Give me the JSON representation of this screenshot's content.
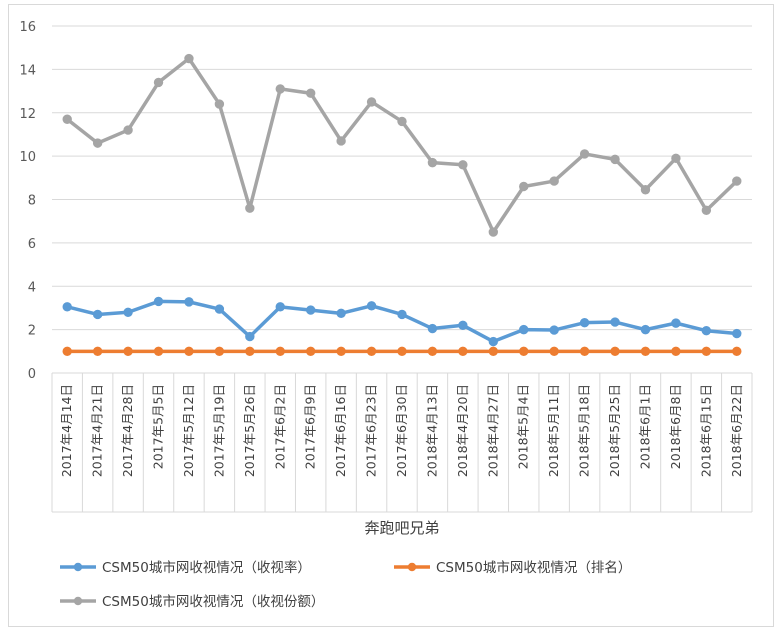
{
  "chart_data": {
    "type": "line",
    "xlabel": "奔跑吧兄弟",
    "ylim": [
      0,
      16
    ],
    "ytick_step": 2,
    "grid": "horizontal",
    "legend_position": "bottom",
    "categories": [
      "2017年4月14日",
      "2017年4月21日",
      "2017年4月28日",
      "2017年5月5日",
      "2017年5月12日",
      "2017年5月19日",
      "2017年5月26日",
      "2017年6月2日",
      "2017年6月9日",
      "2017年6月16日",
      "2017年6月23日",
      "2017年6月30日",
      "2018年4月13日",
      "2018年4月20日",
      "2018年4月27日",
      "2018年5月4日",
      "2018年5月11日",
      "2018年5月18日",
      "2018年5月25日",
      "2018年6月1日",
      "2018年6月8日",
      "2018年6月15日",
      "2018年6月22日"
    ],
    "series": [
      {
        "name": "CSM50城市网收视情况（收视率）",
        "color": "#5B9BD5",
        "values": [
          3.05,
          2.7,
          2.8,
          3.3,
          3.28,
          2.95,
          1.68,
          3.05,
          2.9,
          2.75,
          3.1,
          2.7,
          2.05,
          2.2,
          1.45,
          2.0,
          1.98,
          2.32,
          2.35,
          2.0,
          2.3,
          1.95,
          1.82
        ]
      },
      {
        "name": "CSM50城市网收视情况（排名）",
        "color": "#ED7D31",
        "values": [
          1,
          1,
          1,
          1,
          1,
          1,
          1,
          1,
          1,
          1,
          1,
          1,
          1,
          1,
          1,
          1,
          1,
          1,
          1,
          1,
          1,
          1,
          1
        ]
      },
      {
        "name": "CSM50城市网收视情况（收视份额）",
        "color": "#A5A5A5",
        "values": [
          11.7,
          10.6,
          11.2,
          13.4,
          14.5,
          12.4,
          7.6,
          13.1,
          12.9,
          10.7,
          12.5,
          11.6,
          9.7,
          9.6,
          6.5,
          8.6,
          8.85,
          10.1,
          9.85,
          8.45,
          9.9,
          7.5,
          8.85
        ]
      }
    ]
  }
}
